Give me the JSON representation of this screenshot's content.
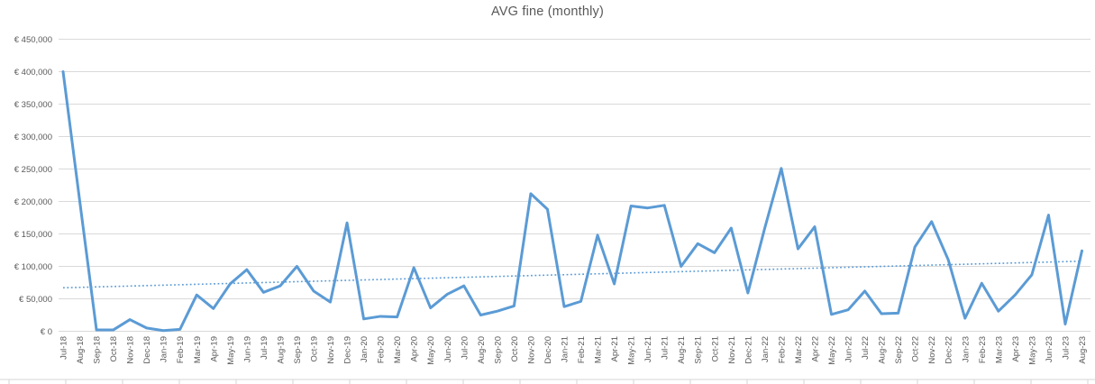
{
  "chart_data": {
    "type": "line",
    "title": "AVG fine (monthly)",
    "legend": "none",
    "grid": true,
    "currency_prefix": "€",
    "categories": [
      "Jul-18",
      "Aug-18",
      "Sep-18",
      "Oct-18",
      "Nov-18",
      "Dec-18",
      "Jan-19",
      "Feb-19",
      "Mar-19",
      "Apr-19",
      "May-19",
      "Jun-19",
      "Jul-19",
      "Aug-19",
      "Sep-19",
      "Oct-19",
      "Nov-19",
      "Dec-19",
      "Jan-20",
      "Feb-20",
      "Mar-20",
      "Apr-20",
      "May-20",
      "Jun-20",
      "Jul-20",
      "Aug-20",
      "Sep-20",
      "Oct-20",
      "Nov-20",
      "Dec-20",
      "Jan-21",
      "Feb-21",
      "Mar-21",
      "Apr-21",
      "May-21",
      "Jun-21",
      "Jul-21",
      "Aug-21",
      "Sep-21",
      "Oct-21",
      "Nov-21",
      "Dec-21",
      "Jan-22",
      "Feb-22",
      "Mar-22",
      "Apr-22",
      "May-22",
      "Jun-22",
      "Jul-22",
      "Aug-22",
      "Sep-22",
      "Oct-22",
      "Nov-22",
      "Dec-22",
      "Jan-23",
      "Feb-23",
      "Mar-23",
      "Apr-23",
      "May-23",
      "Jun-23",
      "Jul-23",
      "Aug-23"
    ],
    "series": [
      {
        "name": "AVG fine",
        "values": [
          400000,
          200000,
          2000,
          2000,
          18000,
          5000,
          1000,
          3000,
          56000,
          35000,
          73000,
          95000,
          60000,
          70000,
          100000,
          62000,
          45000,
          167000,
          19000,
          23000,
          22000,
          98000,
          36000,
          57000,
          70000,
          25000,
          31000,
          39000,
          212000,
          188000,
          38000,
          46000,
          148000,
          73000,
          193000,
          190000,
          194000,
          100000,
          135000,
          121000,
          159000,
          59000,
          158000,
          251000,
          127000,
          161000,
          26000,
          33000,
          62000,
          27000,
          28000,
          130000,
          169000,
          110000,
          20000,
          74000,
          31000,
          56000,
          87000,
          179000,
          11000,
          124000
        ]
      }
    ],
    "trendline": {
      "style": "dotted",
      "start_value": 67000,
      "end_value": 108000
    },
    "y_axis": {
      "min": 0,
      "max": 450000,
      "step": 50000,
      "tick_labels": [
        "€ 0",
        "€ 50,000",
        "€ 100,000",
        "€ 150,000",
        "€ 200,000",
        "€ 250,000",
        "€ 300,000",
        "€ 350,000",
        "€ 400,000",
        "€ 450,000"
      ]
    },
    "colors": {
      "series": "#5B9BD5",
      "trendline": "#5B9BD5",
      "gridline": "#D9D9D9",
      "axis_text": "#595959",
      "title_text": "#595959",
      "worksheet_line": "#D6D6D6"
    }
  }
}
